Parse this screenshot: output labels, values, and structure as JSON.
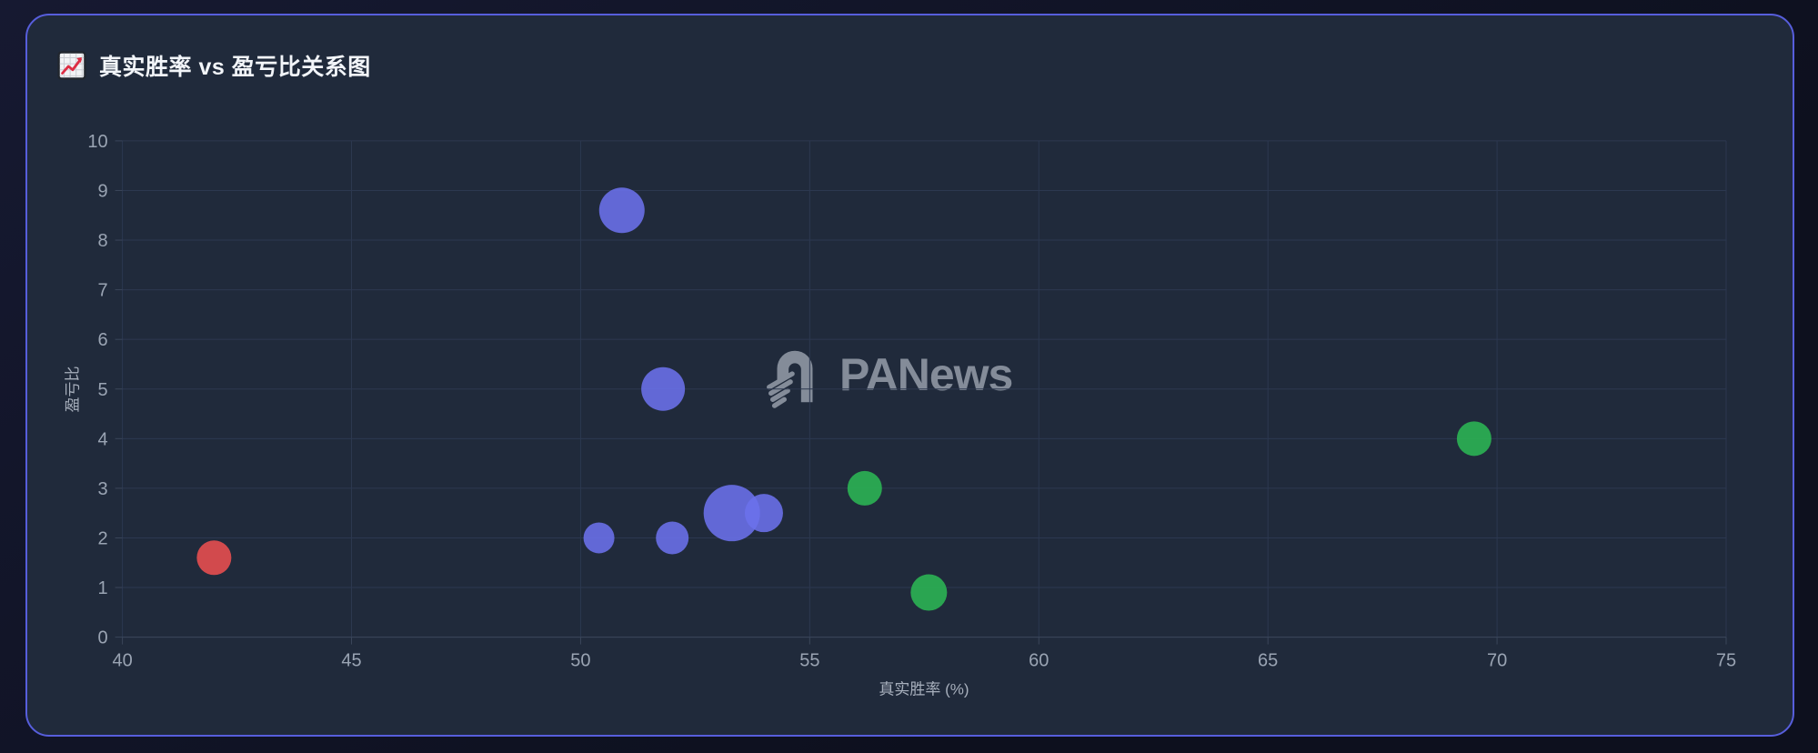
{
  "header": {
    "title": "真实胜率 vs 盈亏比关系图",
    "icon": "chart-increasing-emoji"
  },
  "watermark": {
    "text": "PANews",
    "icon": "panews-logo"
  },
  "chart_data": {
    "type": "scatter",
    "title": "真实胜率 vs 盈亏比关系图",
    "xlabel": "真实胜率 (%)",
    "ylabel": "盈亏比",
    "xlim": [
      40,
      75
    ],
    "ylim": [
      0,
      10
    ],
    "x_ticks": [
      40,
      45,
      50,
      55,
      60,
      65,
      70,
      75
    ],
    "y_ticks": [
      0,
      1,
      2,
      3,
      4,
      5,
      6,
      7,
      8,
      9,
      10
    ],
    "grid": true,
    "legend": false,
    "points": [
      {
        "x": 42.0,
        "y": 1.6,
        "r": 19,
        "group": "red"
      },
      {
        "x": 50.9,
        "y": 8.6,
        "r": 25,
        "group": "blue"
      },
      {
        "x": 51.8,
        "y": 5.0,
        "r": 24,
        "group": "blue"
      },
      {
        "x": 50.4,
        "y": 2.0,
        "r": 17,
        "group": "blue"
      },
      {
        "x": 52.0,
        "y": 2.0,
        "r": 18,
        "group": "blue"
      },
      {
        "x": 53.3,
        "y": 2.5,
        "r": 31,
        "group": "blue"
      },
      {
        "x": 54.0,
        "y": 2.5,
        "r": 21,
        "group": "blue"
      },
      {
        "x": 56.2,
        "y": 3.0,
        "r": 19,
        "group": "green"
      },
      {
        "x": 57.6,
        "y": 0.9,
        "r": 20,
        "group": "green"
      },
      {
        "x": 69.5,
        "y": 4.0,
        "r": 19,
        "group": "green"
      }
    ],
    "colors": {
      "blue": "#6B71EC",
      "green": "#2BAC52",
      "red": "#DC4C4E"
    },
    "opacities": {
      "blue": 0.88,
      "green": 0.95,
      "red": 0.95
    }
  },
  "theme": {
    "page_bg": "#161931",
    "page_bg2": "#0d101e",
    "card_bg": "#202A3B",
    "card_border": "#575EDC",
    "grid_line": "#2C3850",
    "axis_line": "#3A465A",
    "tick_text": "#9AA4B3",
    "axis_title_text": "#A7AFBC",
    "title_text": "#F2F5F9",
    "watermark": "#8D95A2"
  }
}
